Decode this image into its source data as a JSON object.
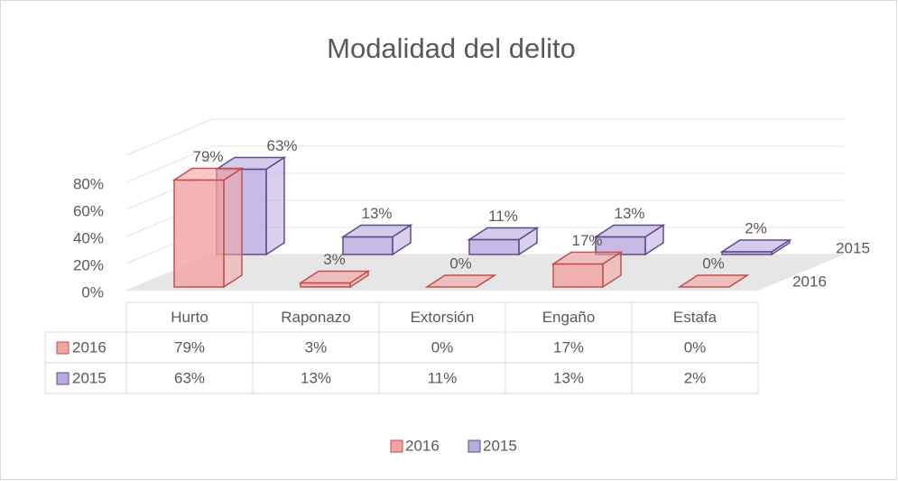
{
  "chart_data": {
    "type": "bar3d",
    "title": "Modalidad del delito",
    "categories": [
      "Hurto",
      "Raponazo",
      "Extorsión",
      "Engaño",
      "Estafa"
    ],
    "series": [
      {
        "name": "2016",
        "color": "#f4a3a3",
        "stroke": "#c0504d",
        "values": [
          79,
          3,
          0,
          17,
          0
        ],
        "value_labels": [
          "79%",
          "3%",
          "0%",
          "17%",
          "0%"
        ]
      },
      {
        "name": "2015",
        "color": "#b8a9de",
        "stroke": "#604a8b",
        "values": [
          63,
          13,
          11,
          13,
          2
        ],
        "value_labels": [
          "63%",
          "13%",
          "11%",
          "13%",
          "2%"
        ]
      }
    ],
    "ylim": [
      0,
      100
    ],
    "yticks": [
      {
        "value": 0,
        "label": "0%"
      },
      {
        "value": 20,
        "label": "20%"
      },
      {
        "value": 40,
        "label": "40%"
      },
      {
        "value": 60,
        "label": "60%"
      },
      {
        "value": 80,
        "label": "80%"
      }
    ],
    "grid": true,
    "data_table": true,
    "legend": "bottom"
  }
}
